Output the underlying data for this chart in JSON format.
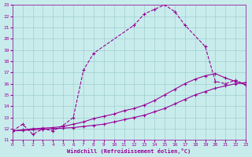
{
  "xlabel": "Windchill (Refroidissement éolien,°C)",
  "xlim": [
    0,
    23
  ],
  "ylim": [
    11,
    23
  ],
  "xticks": [
    0,
    1,
    2,
    3,
    4,
    5,
    6,
    7,
    8,
    9,
    10,
    11,
    12,
    13,
    14,
    15,
    16,
    17,
    18,
    19,
    20,
    21,
    22,
    23
  ],
  "yticks": [
    11,
    12,
    13,
    14,
    15,
    16,
    17,
    18,
    19,
    20,
    21,
    22,
    23
  ],
  "background_color": "#c8ecec",
  "grid_color": "#a0cece",
  "line_color": "#990099",
  "curve1_x": [
    0,
    1,
    2,
    3,
    4,
    5,
    6,
    7,
    8,
    12,
    13,
    14,
    15,
    16,
    17,
    19,
    20,
    21,
    22,
    23
  ],
  "curve1_y": [
    11.8,
    12.4,
    11.5,
    12.0,
    11.8,
    12.3,
    13.0,
    17.2,
    18.7,
    21.2,
    22.2,
    22.6,
    23.0,
    22.4,
    21.2,
    19.3,
    16.2,
    16.0,
    16.3,
    15.9
  ],
  "curve1_dashed": true,
  "curve2_x": [
    0,
    1,
    2,
    3,
    4,
    5,
    6,
    7,
    8,
    9,
    10,
    11,
    12,
    13,
    14,
    15,
    16,
    17,
    18,
    19,
    20,
    21,
    22,
    23
  ],
  "curve2_y": [
    11.8,
    11.9,
    12.0,
    12.05,
    12.1,
    12.2,
    12.4,
    12.6,
    12.9,
    13.1,
    13.3,
    13.6,
    13.8,
    14.1,
    14.5,
    15.0,
    15.5,
    16.0,
    16.4,
    16.7,
    16.9,
    16.5,
    16.2,
    15.9
  ],
  "curve3_x": [
    0,
    1,
    2,
    3,
    4,
    5,
    6,
    7,
    8,
    9,
    10,
    11,
    12,
    13,
    14,
    15,
    16,
    17,
    18,
    19,
    20,
    21,
    22,
    23
  ],
  "curve3_y": [
    11.8,
    11.85,
    11.9,
    11.95,
    12.0,
    12.05,
    12.1,
    12.2,
    12.3,
    12.4,
    12.6,
    12.8,
    13.0,
    13.2,
    13.5,
    13.8,
    14.2,
    14.6,
    15.0,
    15.3,
    15.6,
    15.8,
    16.0,
    16.1
  ],
  "marker_size": 3.5
}
